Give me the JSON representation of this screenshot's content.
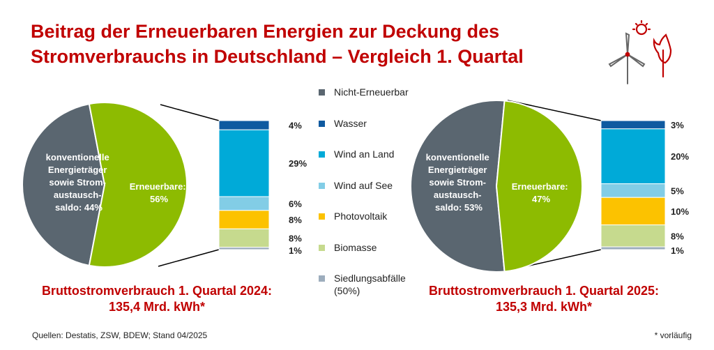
{
  "title": {
    "line1": "Beitrag der Erneuerbaren Energien zur Deckung des",
    "line2": "Stromverbrauchs in Deutschland – Vergleich 1. Quartal"
  },
  "legend": [
    {
      "label": "Nicht-Erneuerbar",
      "color": "#5a6670"
    },
    {
      "label": "Wasser",
      "color": "#0f5aa0"
    },
    {
      "label": "Wind an Land",
      "color": "#00aad8"
    },
    {
      "label": "Wind auf See",
      "color": "#82cde6"
    },
    {
      "label": "Photovoltaik",
      "color": "#fcc200"
    },
    {
      "label": "Biomasse",
      "color": "#c6da8e"
    },
    {
      "label": "Siedlungsabfälle (50%)",
      "color": "#9dadbd"
    }
  ],
  "colors": {
    "renewable": "#8dbb01",
    "nonrenewable": "#5a6670",
    "accent": "#c00000"
  },
  "chart_data": [
    {
      "type": "pie",
      "year": "2024",
      "pie": [
        {
          "name": "konventionelle Energieträger sowie Strom-austausch-saldo: 44%",
          "value": 44
        },
        {
          "name": "Erneuerbare: 56%",
          "value": 56
        }
      ],
      "bar": {
        "type": "bar",
        "stacked": true,
        "series": [
          {
            "name": "Wasser",
            "value": 4,
            "label": "4%"
          },
          {
            "name": "Wind an Land",
            "value": 29,
            "label": "29%"
          },
          {
            "name": "Wind auf See",
            "value": 6,
            "label": "6%"
          },
          {
            "name": "Photovoltaik",
            "value": 8,
            "label": "8%"
          },
          {
            "name": "Biomasse",
            "value": 8,
            "label": "8%"
          },
          {
            "name": "Siedlungsabfälle (50%)",
            "value": 1,
            "label": "1%"
          }
        ]
      },
      "caption": {
        "line1": "Bruttostromverbrauch 1. Quartal 2024:",
        "line2": "135,4 Mrd. kWh*"
      }
    },
    {
      "type": "pie",
      "year": "2025",
      "pie": [
        {
          "name": "konventionelle Energieträger sowie Strom-austausch-saldo: 53%",
          "value": 53
        },
        {
          "name": "Erneuerbare: 47%",
          "value": 47
        }
      ],
      "bar": {
        "type": "bar",
        "stacked": true,
        "series": [
          {
            "name": "Wasser",
            "value": 3,
            "label": "3%"
          },
          {
            "name": "Wind an Land",
            "value": 20,
            "label": "20%"
          },
          {
            "name": "Wind auf See",
            "value": 5,
            "label": "5%"
          },
          {
            "name": "Photovoltaik",
            "value": 10,
            "label": "10%"
          },
          {
            "name": "Biomasse",
            "value": 8,
            "label": "8%"
          },
          {
            "name": "Siedlungsabfälle (50%)",
            "value": 1,
            "label": "1%"
          }
        ]
      },
      "caption": {
        "line1": "Bruttostromverbrauch 1. Quartal 2025:",
        "line2": "135,3 Mrd. kWh*"
      }
    }
  ],
  "pie_labels": [
    {
      "conv": [
        "konventionelle",
        "Energieträger",
        "sowie Strom-",
        "austausch-",
        "saldo: 44%"
      ],
      "ren": [
        "Erneuerbare:",
        "56%"
      ]
    },
    {
      "conv": [
        "konventionelle",
        "Energieträger",
        "sowie Strom-",
        "austausch-",
        "saldo: 53%"
      ],
      "ren": [
        "Erneuerbare:",
        "47%"
      ]
    }
  ],
  "footer": {
    "sources": "Quellen: Destatis, ZSW, BDEW; Stand 04/2025",
    "note": "* vorläufig"
  }
}
